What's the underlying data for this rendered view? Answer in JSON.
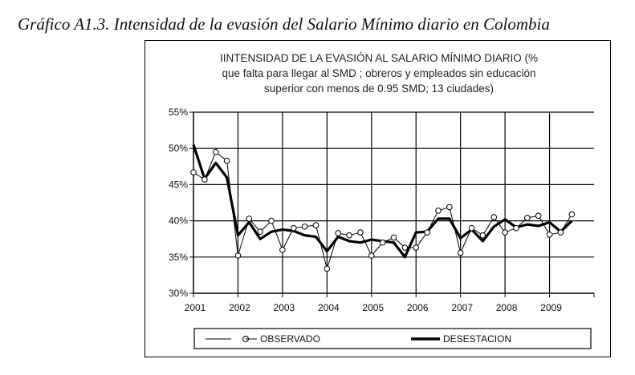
{
  "caption": "Gráfico A1.3. Intensidad de la evasión del Salario Mínimo diario en Colombia",
  "chart_data": {
    "type": "line",
    "title_lines": [
      "IINTENSIDAD DE LA EVASIÓN AL SALARIO MÍNIMO DIARIO (%",
      "que falta para llegar al SMD ; obreros y empleados sin educación",
      "superior con menos de 0.95 SMD;  13 ciudades)"
    ],
    "x_tick_labels": [
      "2001",
      "2002",
      "2003",
      "2004",
      "2005",
      "2006",
      "2007",
      "2008",
      "2009"
    ],
    "y_tick_labels": [
      "30%",
      "35%",
      "40%",
      "45%",
      "50%",
      "55%"
    ],
    "ylim": [
      30,
      55
    ],
    "xlim": [
      2001,
      2010
    ],
    "grid": "horizontal and vertical",
    "legend_position": "bottom",
    "series": [
      {
        "name": "OBSERVADO",
        "style": "thin line with hollow circle markers",
        "x": [
          2001.0,
          2001.25,
          2001.5,
          2001.75,
          2002.0,
          2002.25,
          2002.5,
          2002.75,
          2003.0,
          2003.25,
          2003.5,
          2003.75,
          2004.0,
          2004.25,
          2004.5,
          2004.75,
          2005.0,
          2005.25,
          2005.5,
          2005.75,
          2006.0,
          2006.25,
          2006.5,
          2006.75,
          2007.0,
          2007.25,
          2007.5,
          2007.75,
          2008.0,
          2008.25,
          2008.5,
          2008.75,
          2009.0,
          2009.25,
          2009.5
        ],
        "values": [
          46.7,
          45.7,
          49.5,
          48.3,
          35.2,
          40.3,
          38.5,
          40.0,
          36.0,
          39.0,
          39.2,
          39.4,
          33.4,
          38.3,
          38.0,
          38.4,
          35.2,
          37.0,
          37.7,
          36.3,
          36.3,
          38.4,
          41.4,
          41.9,
          35.6,
          39.0,
          38.0,
          40.5,
          38.4,
          39.0,
          40.4,
          40.7,
          38.1,
          38.4,
          40.9
        ]
      },
      {
        "name": "DESESTACION",
        "style": "thick line",
        "x": [
          2001.0,
          2001.25,
          2001.5,
          2001.75,
          2002.0,
          2002.25,
          2002.5,
          2002.75,
          2003.0,
          2003.25,
          2003.5,
          2003.75,
          2004.0,
          2004.25,
          2004.5,
          2004.75,
          2005.0,
          2005.25,
          2005.5,
          2005.75,
          2006.0,
          2006.25,
          2006.5,
          2006.75,
          2007.0,
          2007.25,
          2007.5,
          2007.75,
          2008.0,
          2008.25,
          2008.5,
          2008.75,
          2009.0,
          2009.25,
          2009.5
        ],
        "values": [
          50.5,
          45.8,
          48.0,
          46.0,
          38.0,
          39.8,
          37.5,
          38.5,
          38.8,
          38.6,
          38.0,
          37.8,
          35.8,
          37.8,
          37.2,
          37.0,
          37.4,
          37.2,
          37.0,
          35.0,
          38.4,
          38.5,
          40.3,
          40.3,
          37.6,
          38.8,
          37.2,
          39.2,
          40.2,
          39.1,
          39.5,
          39.3,
          39.8,
          38.5,
          40.0
        ]
      }
    ]
  }
}
